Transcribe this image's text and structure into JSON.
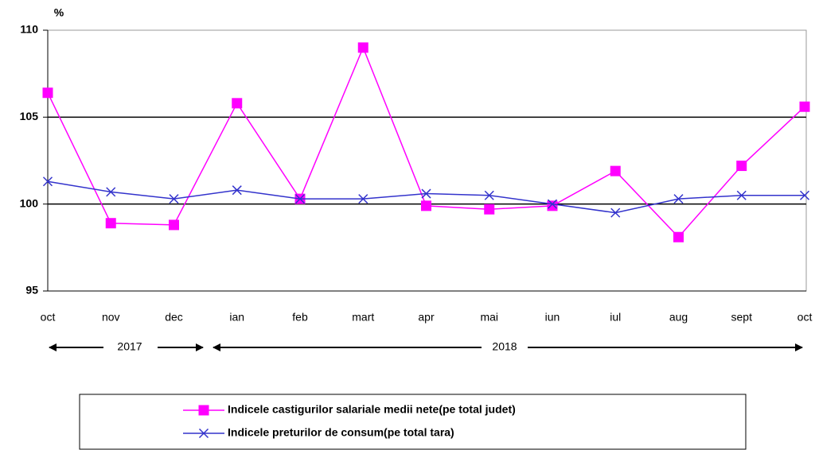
{
  "chart_data": {
    "type": "line",
    "y_label": "%",
    "categories": [
      "oct",
      "nov",
      "dec",
      "ian",
      "feb",
      "mart",
      "apr",
      "mai",
      "iun",
      "iul",
      "aug",
      "sept",
      "oct"
    ],
    "series": [
      {
        "name": "Indicele castigurilor salariale medii nete(pe total judet)",
        "color": "#ff00ff",
        "marker": "square",
        "values": [
          106.4,
          98.9,
          98.8,
          105.8,
          100.3,
          109.0,
          99.9,
          99.7,
          99.9,
          101.9,
          98.1,
          102.2,
          105.6
        ]
      },
      {
        "name": "Indicele preturilor de consum(pe total tara)",
        "color": "#3333cc",
        "marker": "x",
        "values": [
          101.3,
          100.7,
          100.3,
          100.8,
          100.3,
          100.3,
          100.6,
          100.5,
          100.0,
          99.5,
          100.3,
          100.5,
          100.5
        ]
      }
    ],
    "ylim": [
      95,
      110
    ],
    "yticks": [
      95,
      100,
      105,
      110
    ],
    "grid": true,
    "annotations": [
      "2017",
      "2018"
    ]
  }
}
